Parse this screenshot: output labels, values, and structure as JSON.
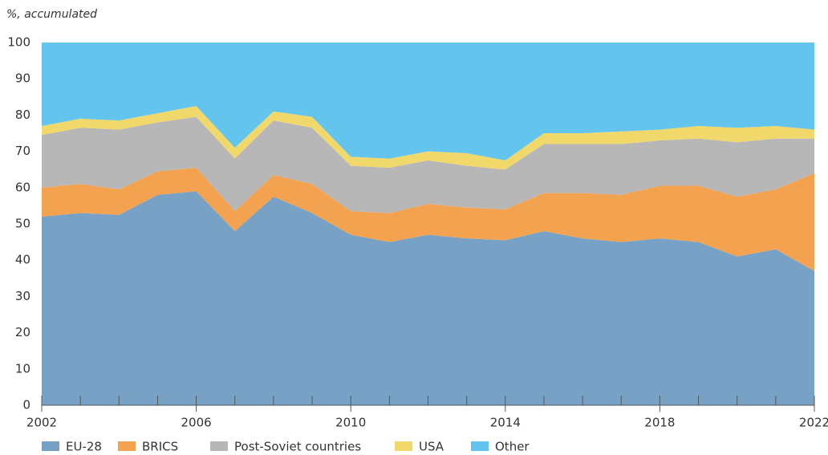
{
  "chart_data": {
    "type": "stacked_area",
    "y_label": "%, accumulated",
    "x": [
      2002,
      2003,
      2004,
      2005,
      2006,
      2007,
      2008,
      2009,
      2010,
      2011,
      2012,
      2013,
      2014,
      2015,
      2016,
      2017,
      2018,
      2019,
      2020,
      2021,
      2022
    ],
    "series": [
      {
        "name": "EU-28",
        "color": "#77a2c6",
        "values": [
          52,
          53,
          52.5,
          58,
          59,
          48,
          57.5,
          53,
          47,
          45,
          47,
          46,
          45.5,
          48,
          46,
          45,
          46,
          45,
          41,
          43,
          37
        ]
      },
      {
        "name": "BRICS",
        "color": "#f3a24f",
        "values": [
          8,
          8,
          7,
          6.5,
          6.5,
          5.5,
          6,
          8,
          6.5,
          8,
          8.5,
          8.5,
          8.5,
          10.5,
          12.5,
          13,
          14.5,
          15.5,
          16.5,
          16.5,
          27
        ]
      },
      {
        "name": "Post-Soviet countries",
        "color": "#b7b7b7",
        "values": [
          14.5,
          15.5,
          16.5,
          13.5,
          14,
          14.5,
          15,
          15.5,
          12.5,
          12.5,
          12,
          11.5,
          11,
          13.5,
          13.5,
          14,
          12.5,
          13,
          15,
          14,
          9.5
        ]
      },
      {
        "name": "USA",
        "color": "#f1d86a",
        "values": [
          2.5,
          2.5,
          2.5,
          2.5,
          3,
          3,
          2.5,
          3,
          2.5,
          2.5,
          2.5,
          3.5,
          2.5,
          3,
          3,
          3.5,
          3,
          3.5,
          4,
          3.5,
          2.5
        ]
      },
      {
        "name": "Other",
        "color": "#63c4ee",
        "values": [
          23,
          21,
          21.5,
          19.5,
          17.5,
          29,
          19,
          20.5,
          31.5,
          32,
          30,
          30.5,
          32.5,
          25,
          25,
          24.5,
          24,
          23,
          23.5,
          23,
          24
        ]
      }
    ],
    "xlim": [
      2002,
      2022
    ],
    "xticks": [
      2002,
      2006,
      2010,
      2014,
      2018,
      2022
    ],
    "ylim": [
      0,
      100
    ],
    "yticks": [
      0,
      10,
      20,
      30,
      40,
      50,
      60,
      70,
      80,
      90,
      100
    ],
    "legend": "bottom"
  }
}
